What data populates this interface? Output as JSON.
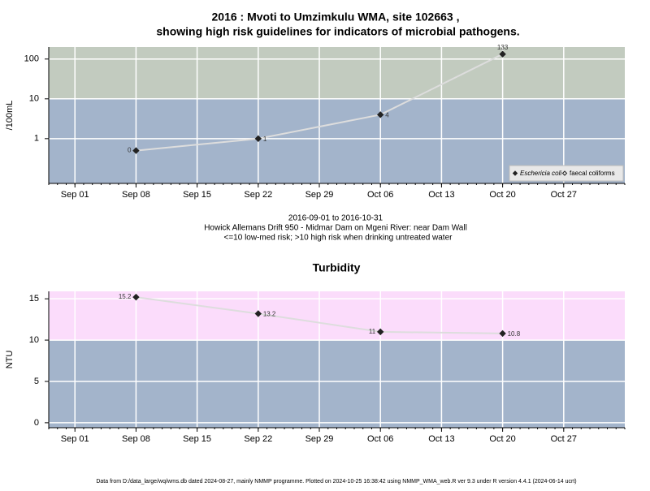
{
  "chart_data": [
    {
      "type": "line",
      "title": [
        "2016 : Mvoti to Umzimkulu WMA, site 102663 ,",
        "showing high risk guidelines for indicators of microbial pathogens."
      ],
      "subtitle": [
        "2016-09-01 to 2016-10-31",
        "Howick Allemans Drift 950 - Midmar Dam on Mgeni River: near Dam Wall",
        "<=10 low-med risk; >10 high risk when drinking untreated water"
      ],
      "ylabel": "/100mL",
      "log_y": true,
      "x": [
        "2016-09-08",
        "2016-09-22",
        "2016-10-06",
        "2016-10-20"
      ],
      "series": [
        {
          "name": "Eschericia coli",
          "color": "#222222",
          "marker": "filled",
          "values": [
            0.5,
            1,
            4,
            133
          ],
          "value_labels": [
            "0",
            "1",
            "4",
            "133"
          ]
        },
        {
          "name": "faecal coliforms",
          "color": "#222222",
          "marker": "open",
          "values": [
            null,
            null,
            null,
            null
          ]
        }
      ],
      "xlim": [
        "2016-08-29",
        "2016-11-03"
      ],
      "xticks": [
        {
          "value": "2016-09-01",
          "label": "Sep 01"
        },
        {
          "value": "2016-09-08",
          "label": "Sep 08"
        },
        {
          "value": "2016-09-15",
          "label": "Sep 15"
        },
        {
          "value": "2016-09-22",
          "label": "Sep 22"
        },
        {
          "value": "2016-09-29",
          "label": "Sep 29"
        },
        {
          "value": "2016-10-06",
          "label": "Oct 06"
        },
        {
          "value": "2016-10-13",
          "label": "Oct 13"
        },
        {
          "value": "2016-10-20",
          "label": "Oct 20"
        },
        {
          "value": "2016-10-27",
          "label": "Oct 27"
        }
      ],
      "ylim": [
        0.075,
        200
      ],
      "yticks": [
        1,
        10,
        100
      ],
      "threshold": 10,
      "color_above": "#c2cbbf",
      "color_below": "#a3b4cb",
      "line_color": "#dddddd",
      "grid": true,
      "legend": "bottom-right"
    },
    {
      "type": "line",
      "title": "Turbidity",
      "ylabel": "NTU",
      "log_y": false,
      "x": [
        "2016-09-08",
        "2016-09-22",
        "2016-10-06",
        "2016-10-20"
      ],
      "series": [
        {
          "color": "#222222",
          "marker": "filled",
          "values": [
            15.2,
            13.2,
            11,
            10.8
          ]
        }
      ],
      "xlim": [
        "2016-08-29",
        "2016-11-03"
      ],
      "xticks": [
        {
          "value": "2016-09-01",
          "label": "Sep 01"
        },
        {
          "value": "2016-09-08",
          "label": "Sep 08"
        },
        {
          "value": "2016-09-15",
          "label": "Sep 15"
        },
        {
          "value": "2016-09-22",
          "label": "Sep 22"
        },
        {
          "value": "2016-09-29",
          "label": "Sep 29"
        },
        {
          "value": "2016-10-06",
          "label": "Oct 06"
        },
        {
          "value": "2016-10-13",
          "label": "Oct 13"
        },
        {
          "value": "2016-10-20",
          "label": "Oct 20"
        },
        {
          "value": "2016-10-27",
          "label": "Oct 27"
        }
      ],
      "ylim": [
        -0.6,
        15.9
      ],
      "yticks": [
        0,
        5,
        10,
        15
      ],
      "threshold": 10,
      "color_above": "#fbdcfb",
      "color_below": "#a3b4cb",
      "line_color": "#dddddd",
      "grid": true
    }
  ],
  "footer": "Data from D:/data_large/wq/wms.db dated 2024-08-27, mainly NMMP programme. Plotted on 2024-10-25 16:38:42 using NMMP_WMA_web.R ver 9.3 under R version 4.4.1 (2024-06-14 ucrt)"
}
